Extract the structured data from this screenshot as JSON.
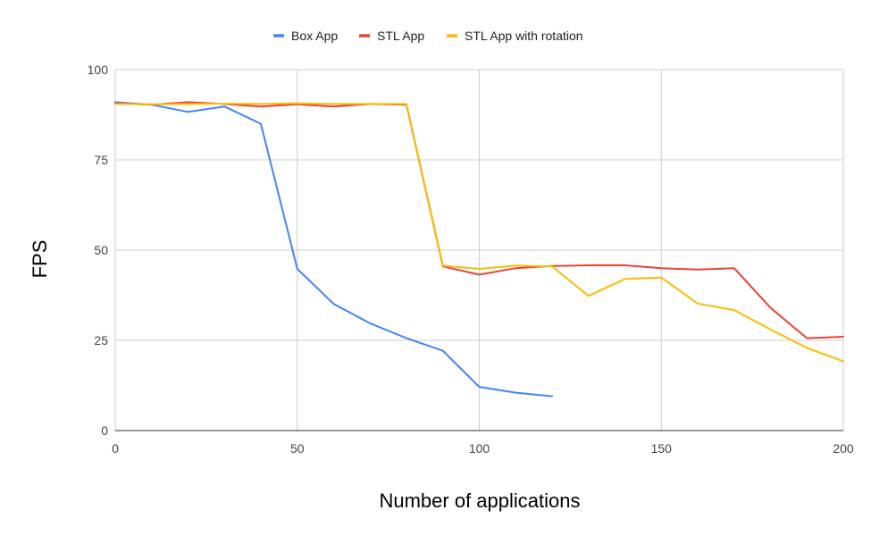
{
  "chart_data": {
    "type": "line",
    "title": "",
    "xlabel": "Number of applications",
    "ylabel": "FPS",
    "xlim": [
      0,
      200
    ],
    "ylim": [
      0,
      100
    ],
    "xticks": [
      0,
      50,
      100,
      150,
      200
    ],
    "yticks": [
      0,
      25,
      50,
      75,
      100
    ],
    "grid": true,
    "legend_position": "top-center",
    "series": [
      {
        "name": "Box App",
        "color": "#4285F4",
        "x": [
          0,
          10,
          20,
          30,
          40,
          50,
          60,
          70,
          80,
          90,
          100,
          110,
          120
        ],
        "values": [
          91,
          90.3,
          88.3,
          89.8,
          85,
          44.8,
          35.1,
          29.7,
          25.6,
          22.1,
          12.1,
          10.5,
          9.5
        ]
      },
      {
        "name": "STL App",
        "color": "#EA4335",
        "x": [
          0,
          10,
          20,
          30,
          40,
          50,
          60,
          70,
          80,
          90,
          100,
          110,
          120,
          130,
          140,
          150,
          160,
          170,
          180,
          190,
          200
        ],
        "values": [
          90.7,
          90.3,
          91,
          90.5,
          89.8,
          90.4,
          89.8,
          90.5,
          90.3,
          45.5,
          43.2,
          45,
          45.6,
          45.8,
          45.8,
          45,
          44.6,
          45,
          34,
          25.6,
          26
        ]
      },
      {
        "name": "STL App with rotation",
        "color": "#FBBC04",
        "x": [
          0,
          10,
          20,
          30,
          40,
          50,
          60,
          70,
          80,
          90,
          100,
          110,
          120,
          130,
          140,
          150,
          160,
          170,
          180,
          190,
          200
        ],
        "values": [
          90.5,
          90.4,
          90.5,
          90.6,
          90.5,
          90.7,
          90.5,
          90.5,
          90.5,
          45.7,
          44.8,
          45.7,
          45.5,
          37.3,
          42,
          42.4,
          35.2,
          33.4,
          28,
          22.9,
          19.2
        ]
      }
    ]
  }
}
